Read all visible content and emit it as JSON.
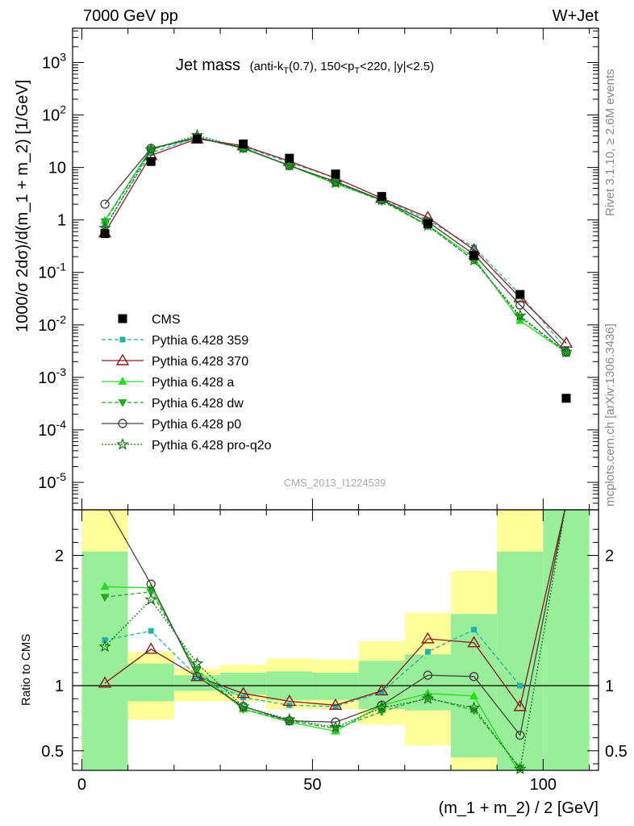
{
  "header": {
    "left": "7000 GeV pp",
    "right": "W+Jet"
  },
  "side_labels": {
    "rivet": "Rivet 3.1.10, ≥ 2.6M events",
    "mcplots": "mcplots.cern.ch [arXiv:1306.3436]"
  },
  "analysis_id": "CMS_2013_I1224539",
  "chart_data": [
    {
      "type": "line",
      "panel": "main",
      "title_main": "Jet mass",
      "title_sub": "(anti-k_T(0.7), 150<p_T<220, |y|<2.5)",
      "xlabel": "(m_1 + m_2) / 2 [GeV]",
      "ylabel": "1000/σ 2dσ)/d(m_1 + m_2) [1/GeV]",
      "yscale": "log",
      "xlim": [
        -2,
        112
      ],
      "ylim": [
        3e-06,
        4500
      ],
      "x_ticks": [
        0,
        50,
        100
      ],
      "y_tick_labels": [
        "10^-5",
        "10^-4",
        "10^-3",
        "10^-2",
        "10^-1",
        "1",
        "10",
        "10^2",
        "10^3"
      ],
      "legend_position": "bottom-left",
      "x": [
        5,
        15,
        25,
        35,
        45,
        55,
        65,
        75,
        85,
        95,
        105
      ],
      "data": {
        "name": "CMS",
        "color": "#000000",
        "values": [
          0.55,
          13,
          35,
          28,
          15,
          7.5,
          2.8,
          0.85,
          0.21,
          0.038,
          0.0004
        ]
      },
      "series": [
        {
          "name": "Pythia 6.428 359",
          "color": "#20b2aa",
          "marker": "square",
          "dash": "5,3",
          "values": [
            0.75,
            19,
            37,
            25,
            12.5,
            6.3,
            2.6,
            1.0,
            0.3,
            0.038,
            0.0035
          ]
        },
        {
          "name": "Pythia 6.428 370",
          "color": "#8b1a1a",
          "marker": "triangle-open",
          "dash": "",
          "values": [
            0.57,
            17,
            35,
            26,
            13.2,
            6.3,
            2.6,
            1.12,
            0.27,
            0.033,
            0.0045
          ]
        },
        {
          "name": "Pythia 6.428 a",
          "color": "#22dd22",
          "marker": "triangle",
          "dash": "",
          "values": [
            0.97,
            23,
            38,
            23,
            10.8,
            4.9,
            2.4,
            0.8,
            0.19,
            0.012,
            0.003
          ]
        },
        {
          "name": "Pythia 6.428 dw",
          "color": "#22aa22",
          "marker": "triangle-down",
          "dash": "5,3",
          "values": [
            0.93,
            22,
            37,
            23,
            11,
            5.1,
            2.3,
            0.78,
            0.17,
            0.014,
            0.003
          ]
        },
        {
          "name": "Pythia 6.428 p0",
          "color": "#444444",
          "marker": "circle-open",
          "dash": "",
          "values": [
            2.0,
            23,
            37,
            23.5,
            10.8,
            5.4,
            2.4,
            0.92,
            0.22,
            0.024,
            0.003
          ]
        },
        {
          "name": "Pythia 6.428 pro-q2o",
          "color": "#117711",
          "marker": "star",
          "dash": "2,2",
          "values": [
            0.7,
            22,
            41,
            23.5,
            11,
            5.1,
            2.4,
            0.78,
            0.17,
            0.015,
            0.003
          ]
        }
      ]
    },
    {
      "type": "line",
      "panel": "ratio",
      "ylabel": "Ratio to CMS",
      "xlim": [
        -2,
        112
      ],
      "ylim": [
        0.35,
        2.35
      ],
      "y_ticks": [
        0.5,
        1,
        2
      ],
      "x": [
        5,
        15,
        25,
        35,
        45,
        55,
        65,
        75,
        85,
        95,
        105
      ],
      "band_edges": [
        0,
        10,
        20,
        30,
        40,
        50,
        60,
        70,
        80,
        90,
        100,
        110
      ],
      "band_inner": [
        [
          0.35,
          2.03
        ],
        [
          0.88,
          1.17
        ],
        [
          0.96,
          1.08
        ],
        [
          0.93,
          1.1
        ],
        [
          0.89,
          1.11
        ],
        [
          0.89,
          1.1
        ],
        [
          0.82,
          1.19
        ],
        [
          0.81,
          1.24
        ],
        [
          0.45,
          1.55
        ],
        [
          0.35,
          2.03
        ],
        [
          0.35,
          2.35
        ]
      ],
      "band_outer": [
        [
          0.35,
          2.35
        ],
        [
          0.74,
          1.26
        ],
        [
          0.88,
          1.13
        ],
        [
          0.88,
          1.16
        ],
        [
          0.82,
          1.21
        ],
        [
          0.82,
          1.2
        ],
        [
          0.7,
          1.34
        ],
        [
          0.54,
          1.56
        ],
        [
          0.35,
          1.88
        ],
        [
          0.35,
          2.35
        ],
        [
          0.35,
          2.35
        ]
      ],
      "series": [
        {
          "name": "Pythia 6.428 359",
          "values": [
            1.35,
            1.42,
            1.07,
            0.91,
            0.85,
            0.84,
            0.95,
            1.26,
            1.43,
            1.0,
            null
          ]
        },
        {
          "name": "Pythia 6.428 370",
          "values": [
            1.02,
            1.28,
            1.07,
            0.94,
            0.88,
            0.85,
            0.96,
            1.36,
            1.33,
            0.84,
            2.7
          ]
        },
        {
          "name": "Pythia 6.428 a",
          "values": [
            1.76,
            1.75,
            1.1,
            0.82,
            0.72,
            0.65,
            0.85,
            0.94,
            0.92,
            0.32,
            null
          ]
        },
        {
          "name": "Pythia 6.428 dw",
          "values": [
            1.68,
            1.72,
            1.12,
            0.82,
            0.73,
            0.67,
            0.8,
            0.91,
            0.81,
            0.37,
            null
          ]
        },
        {
          "name": "Pythia 6.428 p0",
          "values": [
            3.6,
            1.78,
            1.07,
            0.84,
            0.73,
            0.72,
            0.85,
            1.08,
            1.07,
            0.62,
            2.7
          ]
        },
        {
          "name": "Pythia 6.428 pro-q2o",
          "values": [
            1.3,
            1.66,
            1.17,
            0.84,
            0.74,
            0.68,
            0.83,
            0.9,
            0.83,
            0.36,
            2.7
          ]
        }
      ],
      "x_tick_labels": [
        "0",
        "50",
        "100"
      ],
      "y_tick_labels": [
        "0.5",
        "1",
        "2"
      ]
    }
  ]
}
